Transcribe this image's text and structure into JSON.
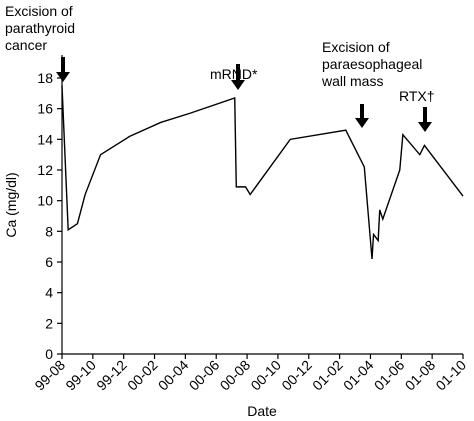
{
  "chart_data": {
    "type": "line",
    "x_label": "Date",
    "y_label": "Ca (mg/dl)",
    "x": [
      0,
      0.4,
      1.0,
      1.5,
      2.5,
      4.4,
      6.4,
      8.3,
      11.2,
      11.3,
      11.9,
      12.2,
      14.8,
      18.4,
      19.6,
      20.1,
      20.2,
      20.5,
      20.6,
      20.8,
      21.9,
      22.1,
      23.2,
      23.5,
      26
    ],
    "series": [
      {
        "name": "Ca",
        "color": "#000000",
        "values": [
          17.5,
          8.1,
          8.5,
          10.4,
          13,
          14.2,
          15.1,
          15.7,
          16.7,
          10.9,
          10.9,
          10.4,
          14,
          14.6,
          12.2,
          6.2,
          7.8,
          7.4,
          9.4,
          8.8,
          12,
          14.3,
          13,
          13.6,
          10.3
        ]
      }
    ],
    "xlim": [
      0,
      26
    ],
    "xticks": [
      {
        "value": 0,
        "label": "99-08"
      },
      {
        "value": 2,
        "label": "99-10"
      },
      {
        "value": 4,
        "label": "99-12"
      },
      {
        "value": 6,
        "label": "00-02"
      },
      {
        "value": 8,
        "label": "00-04"
      },
      {
        "value": 10,
        "label": "00-06"
      },
      {
        "value": 12,
        "label": "00-08"
      },
      {
        "value": 14,
        "label": "00-10"
      },
      {
        "value": 16,
        "label": "00-12"
      },
      {
        "value": 18,
        "label": "01-02"
      },
      {
        "value": 20,
        "label": "01-04"
      },
      {
        "value": 22,
        "label": "01-06"
      },
      {
        "value": 24,
        "label": "01-08"
      },
      {
        "value": 26,
        "label": "01-10"
      }
    ],
    "ylim": [
      0,
      19.5
    ],
    "yticks": [
      0,
      2,
      4,
      6,
      8,
      10,
      12,
      14,
      16,
      18
    ],
    "annotations": [
      {
        "lines": [
          "Excision of",
          "parathyroid",
          "cancer"
        ]
      },
      {
        "lines": [
          "mRND*"
        ]
      },
      {
        "lines": [
          "Excision of",
          "paraesophageal",
          "wall mass"
        ]
      },
      {
        "lines": [
          "RTX†"
        ]
      }
    ]
  }
}
